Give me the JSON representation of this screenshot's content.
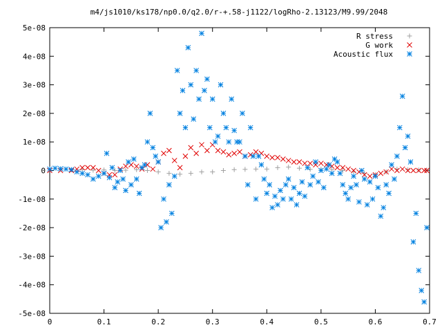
{
  "chart_data": {
    "type": "scatter",
    "title": "m4/js1010/ks178/np0.0/q2.0/r-+.58-j1122/logRho-2.13123/M9.99/2048",
    "xlabel": "",
    "ylabel": "",
    "xlim": [
      0,
      0.7
    ],
    "ylim": [
      -5e-08,
      5e-08
    ],
    "grid": false,
    "legend_position": "top-right",
    "x_ticks": [
      0,
      0.1,
      0.2,
      0.3,
      0.4,
      0.5,
      0.6,
      0.7
    ],
    "x_tick_labels": [
      "0",
      "0.1",
      "0.2",
      "0.3",
      "0.4",
      "0.5",
      "0.6",
      "0.7"
    ],
    "y_ticks": [
      -5e-08,
      -4e-08,
      -3e-08,
      -2e-08,
      -1e-08,
      0,
      1e-08,
      2e-08,
      3e-08,
      4e-08,
      5e-08
    ],
    "y_tick_labels": [
      "-5e-08",
      "-4e-08",
      "-3e-08",
      "-2e-08",
      "-1e-08",
      "0",
      "1e-08",
      "2e-08",
      "3e-08",
      "4e-08",
      "5e-08"
    ],
    "series": [
      {
        "name": "R stress",
        "marker": "plus",
        "color": "#a0a0a0",
        "x": [
          0.0,
          0.02,
          0.04,
          0.06,
          0.08,
          0.1,
          0.12,
          0.14,
          0.16,
          0.18,
          0.2,
          0.22,
          0.24,
          0.26,
          0.28,
          0.3,
          0.32,
          0.34,
          0.36,
          0.38,
          0.4,
          0.42,
          0.44,
          0.46,
          0.48,
          0.5,
          0.52,
          0.54,
          0.56,
          0.58,
          0.6,
          0.62,
          0.64,
          0.66,
          0.68,
          0.695
        ],
        "y": [
          5e-10,
          5e-10,
          3e-10,
          3e-10,
          1e-10,
          2e-10,
          0.0,
          1e-10,
          3e-10,
          0.0,
          -5e-10,
          -1e-09,
          -1.3e-09,
          -1e-09,
          -5e-10,
          -5e-10,
          0.0,
          3e-10,
          4e-10,
          5e-10,
          5e-10,
          1e-09,
          1.2e-09,
          8e-10,
          4e-10,
          5e-10,
          3e-10,
          0.0,
          -5e-10,
          -1e-09,
          -1.5e-09,
          -5e-10,
          5e-10,
          3e-10,
          2e-10,
          1e-10
        ]
      },
      {
        "name": "G work",
        "marker": "cross",
        "color": "#e00000",
        "x": [
          0.0,
          0.02,
          0.04,
          0.05,
          0.06,
          0.07,
          0.08,
          0.09,
          0.1,
          0.11,
          0.12,
          0.13,
          0.14,
          0.15,
          0.16,
          0.17,
          0.18,
          0.19,
          0.2,
          0.21,
          0.22,
          0.23,
          0.24,
          0.25,
          0.26,
          0.27,
          0.28,
          0.29,
          0.3,
          0.31,
          0.32,
          0.33,
          0.34,
          0.35,
          0.36,
          0.37,
          0.38,
          0.39,
          0.4,
          0.41,
          0.42,
          0.43,
          0.44,
          0.45,
          0.46,
          0.47,
          0.48,
          0.49,
          0.5,
          0.51,
          0.52,
          0.53,
          0.54,
          0.55,
          0.56,
          0.57,
          0.58,
          0.59,
          0.6,
          0.61,
          0.62,
          0.63,
          0.64,
          0.65,
          0.66,
          0.67,
          0.68,
          0.69,
          0.695
        ],
        "y": [
          0.0,
          0.0,
          0.0,
          5e-10,
          1e-09,
          1e-09,
          1e-09,
          0.0,
          -1e-09,
          -1.5e-09,
          -1.5e-09,
          5e-10,
          1.5e-09,
          2e-09,
          1.5e-09,
          5e-10,
          2e-09,
          5e-10,
          3e-09,
          6e-09,
          7e-09,
          3.5e-09,
          1e-09,
          5e-09,
          8e-09,
          6e-09,
          9e-09,
          7e-09,
          9e-09,
          7e-09,
          6.5e-09,
          5.5e-09,
          6e-09,
          6.5e-09,
          5e-09,
          5.5e-09,
          6.5e-09,
          6e-09,
          5e-09,
          4.5e-09,
          4.5e-09,
          4e-09,
          3.5e-09,
          3e-09,
          3e-09,
          2.5e-09,
          2.5e-09,
          2e-09,
          2.5e-09,
          2e-09,
          1.5e-09,
          1e-09,
          1e-09,
          5e-10,
          0.0,
          -5e-10,
          -1.5e-09,
          -2e-09,
          -1.5e-09,
          -1e-09,
          -5e-10,
          5e-10,
          0.0,
          5e-10,
          0.0,
          0.0,
          0.0,
          0.0,
          0.0
        ]
      },
      {
        "name": "Acoustic flux",
        "marker": "star",
        "color": "#0080e0",
        "x": [
          0.0,
          0.01,
          0.02,
          0.03,
          0.04,
          0.05,
          0.06,
          0.07,
          0.08,
          0.09,
          0.1,
          0.105,
          0.11,
          0.115,
          0.12,
          0.125,
          0.13,
          0.135,
          0.14,
          0.145,
          0.15,
          0.155,
          0.16,
          0.165,
          0.17,
          0.175,
          0.18,
          0.185,
          0.19,
          0.195,
          0.2,
          0.205,
          0.21,
          0.215,
          0.22,
          0.225,
          0.23,
          0.235,
          0.24,
          0.245,
          0.25,
          0.255,
          0.26,
          0.265,
          0.27,
          0.275,
          0.28,
          0.285,
          0.29,
          0.295,
          0.3,
          0.305,
          0.31,
          0.315,
          0.32,
          0.325,
          0.33,
          0.335,
          0.34,
          0.345,
          0.35,
          0.355,
          0.36,
          0.365,
          0.37,
          0.375,
          0.38,
          0.385,
          0.39,
          0.395,
          0.4,
          0.405,
          0.41,
          0.415,
          0.42,
          0.425,
          0.43,
          0.435,
          0.44,
          0.445,
          0.45,
          0.455,
          0.46,
          0.465,
          0.47,
          0.475,
          0.48,
          0.485,
          0.49,
          0.495,
          0.5,
          0.505,
          0.51,
          0.515,
          0.52,
          0.525,
          0.53,
          0.535,
          0.54,
          0.545,
          0.55,
          0.555,
          0.56,
          0.565,
          0.57,
          0.575,
          0.58,
          0.585,
          0.59,
          0.595,
          0.6,
          0.605,
          0.61,
          0.615,
          0.62,
          0.625,
          0.63,
          0.635,
          0.64,
          0.645,
          0.65,
          0.655,
          0.66,
          0.665,
          0.67,
          0.675,
          0.68,
          0.685,
          0.69,
          0.695
        ],
        "y": [
          5e-10,
          8e-10,
          6e-10,
          5e-10,
          3e-10,
          -5e-10,
          -1e-09,
          -1.5e-09,
          -3e-09,
          -2e-09,
          -1e-09,
          6e-09,
          -2.5e-09,
          1e-09,
          -6e-09,
          -4e-09,
          0.0,
          -3e-09,
          -7e-09,
          3e-09,
          -5e-09,
          4e-09,
          -3e-09,
          -8e-09,
          1e-09,
          2e-09,
          1e-08,
          2e-08,
          8e-09,
          5e-09,
          3e-09,
          -2e-08,
          -1e-08,
          -1.8e-08,
          -5e-09,
          -1.5e-08,
          -2e-09,
          3.5e-08,
          2e-08,
          2.8e-08,
          1.5e-08,
          4.3e-08,
          3e-08,
          1.8e-08,
          3.5e-08,
          2.5e-08,
          4.8e-08,
          2.8e-08,
          3.2e-08,
          1.5e-08,
          2.5e-08,
          1e-08,
          1.2e-08,
          3e-08,
          2e-08,
          1.5e-08,
          1e-08,
          2.5e-08,
          1.4e-08,
          1e-08,
          1e-08,
          2e-08,
          5e-09,
          -5e-09,
          1.5e-08,
          5e-09,
          -1e-08,
          5e-09,
          2e-09,
          -3e-09,
          -8e-09,
          -5e-09,
          -1.3e-08,
          -9e-09,
          -1.2e-08,
          -7e-09,
          -1e-08,
          -5e-09,
          -3e-09,
          -1e-08,
          -6e-09,
          -1.2e-08,
          -8e-09,
          -4e-09,
          -9e-09,
          1e-09,
          -5e-09,
          -2e-09,
          3e-09,
          -4e-09,
          0.0,
          -6e-09,
          5e-10,
          2e-09,
          -1e-09,
          4e-09,
          3e-09,
          -1e-09,
          -5e-09,
          -8e-09,
          -1e-08,
          -6e-09,
          -2e-09,
          -5e-09,
          -1.1e-08,
          0.0,
          -3e-09,
          -1.2e-08,
          -4e-09,
          -1e-08,
          -2e-09,
          -6e-09,
          -1.6e-08,
          -1.3e-08,
          -5e-09,
          -8e-09,
          2e-09,
          -3e-09,
          5e-09,
          1.5e-08,
          2.6e-08,
          8e-09,
          1.2e-08,
          3e-09,
          -2.5e-08,
          -1.5e-08,
          -3.5e-08,
          -4.2e-08,
          -4.6e-08,
          -2e-08
        ]
      }
    ]
  }
}
